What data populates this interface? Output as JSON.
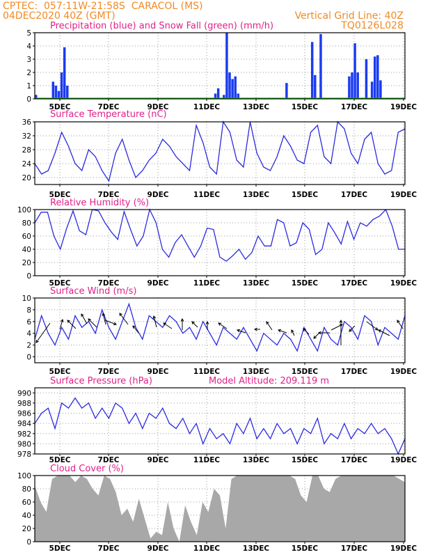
{
  "header": {
    "left_line1": "CPTEC:  057:11W-21:58S  CARACOL (MS)",
    "left_line2": "04DEC2020 40Z (GMT)",
    "right_line1": "Vertical Grid Line: 40Z",
    "right_line2": "TQ0126L028"
  },
  "colors": {
    "header": "#f08a24",
    "title": "#e0208a",
    "line": "#2a2ae0",
    "bar": "#1a3cf0",
    "snow": "#10b010",
    "cloud": "#a8a8a8"
  },
  "x_axis": {
    "ticks": [
      "5DEC",
      "7DEC",
      "9DEC",
      "11DEC",
      "13DEC",
      "15DEC",
      "17DEC",
      "19DEC"
    ]
  },
  "chart_data": [
    {
      "type": "bar",
      "title": "Precipitation (blue) and Snow Fall (green) (mm/h)",
      "ylim": [
        0,
        5
      ],
      "yticks": [
        0,
        1,
        2,
        3,
        4,
        5
      ],
      "series": [
        {
          "name": "Precipitation",
          "values": [
            0.3,
            0.0,
            0.0,
            0.0,
            0.0,
            0.0,
            1.3,
            1.0,
            0.6,
            2.0,
            3.9,
            1.0,
            0.0,
            0.0,
            0.0,
            0.0,
            0.0,
            0.0,
            0.0,
            0.0,
            0.0,
            0.0,
            0.0,
            0.0,
            0.0,
            0.0,
            0.0,
            0.0,
            0.0,
            0.0,
            0.0,
            0.0,
            0.0,
            0.0,
            0.0,
            0.0,
            0.0,
            0.0,
            0.0,
            0.0,
            0.0,
            0.0,
            0.0,
            0.0,
            0.0,
            0.0,
            0.0,
            0.0,
            0.0,
            0.0,
            0.0,
            0.0,
            0.0,
            0.0,
            0.0,
            0.0,
            0.0,
            0.0,
            0.0,
            0.0,
            0.0,
            0.0,
            0.0,
            0.4,
            0.8,
            0.0,
            0.3,
            5.0,
            2.0,
            1.5,
            1.7,
            0.4,
            0.0,
            0.0,
            0.0,
            0.0,
            0.0,
            0.0,
            0.0,
            0.0,
            0.0,
            0.0,
            0.0,
            0.0,
            0.0,
            0.0,
            0.0,
            0.0,
            1.2,
            0.0,
            0.0,
            0.0,
            0.0,
            0.0,
            0.0,
            0.0,
            0.0,
            4.3,
            1.8,
            0.0,
            4.9,
            0.0,
            0.0,
            0.0,
            0.0,
            0.0,
            0.0,
            0.0,
            0.0,
            0.0,
            1.7,
            2.0,
            4.2,
            2.0,
            0.0,
            0.0,
            3.0,
            0.0,
            1.3,
            3.2,
            3.3,
            1.4,
            0.0,
            0.0,
            0.0,
            0.0,
            0.0,
            0.0,
            0.0,
            0.0
          ]
        },
        {
          "name": "Snow Fall",
          "values": []
        }
      ]
    },
    {
      "type": "line",
      "title": "Surface Temperature (nC)",
      "ylim": [
        18,
        36
      ],
      "yticks": [
        20,
        24,
        28,
        32,
        36
      ],
      "y": [
        24,
        21,
        22,
        27,
        33,
        29,
        24,
        22,
        28,
        26,
        22,
        19,
        27,
        31,
        25,
        20,
        22,
        25,
        27,
        31,
        29,
        26,
        24,
        22,
        35,
        30,
        23,
        21,
        36,
        33,
        25,
        23,
        36,
        27,
        23,
        22,
        26,
        32,
        29,
        25,
        24,
        33,
        35,
        26,
        24,
        36,
        34,
        27,
        24,
        31,
        33,
        24,
        21,
        22,
        33,
        34
      ]
    },
    {
      "type": "line",
      "title": "Relative Humidity (%)",
      "ylim": [
        0,
        100
      ],
      "yticks": [
        0,
        20,
        40,
        60,
        80,
        100
      ],
      "y": [
        80,
        96,
        96,
        60,
        40,
        72,
        98,
        68,
        62,
        100,
        98,
        80,
        66,
        55,
        97,
        70,
        45,
        60,
        100,
        80,
        40,
        28,
        50,
        62,
        45,
        28,
        45,
        72,
        70,
        28,
        22,
        30,
        40,
        25,
        35,
        60,
        45,
        45,
        85,
        80,
        45,
        50,
        80,
        70,
        32,
        40,
        80,
        65,
        48,
        82,
        55,
        80,
        75,
        85,
        90,
        100,
        75,
        40,
        40
      ]
    },
    {
      "type": "line",
      "title": "Surface Wind (m/s)",
      "ylim": [
        -1,
        10
      ],
      "yticks": [
        0,
        2,
        4,
        6,
        8,
        10
      ],
      "y": [
        3,
        7,
        4,
        2,
        5,
        3,
        7,
        5,
        6,
        4,
        8,
        5,
        3,
        6,
        9,
        5,
        3,
        7,
        6,
        5,
        7,
        6,
        4,
        5,
        3,
        6,
        4,
        2,
        5,
        4,
        3,
        5,
        3,
        1,
        4,
        3,
        2,
        4,
        3,
        1,
        5,
        3,
        1,
        5,
        3,
        2,
        6,
        5,
        3,
        7,
        6,
        2,
        5,
        4,
        3,
        7
      ]
    },
    {
      "type": "line",
      "title": "Surface Pressure (hPa)",
      "annotation": "Model Altitude: 209.119  m",
      "ylim": [
        978,
        991
      ],
      "yticks": [
        978,
        980,
        982,
        984,
        986,
        988,
        990
      ],
      "y": [
        984,
        986,
        987,
        983,
        988,
        987,
        989,
        987,
        988,
        985,
        987,
        985,
        988,
        987,
        984,
        986,
        983,
        986,
        985,
        987,
        984,
        983,
        985,
        982,
        984,
        980,
        983,
        981,
        982,
        980,
        984,
        982,
        985,
        981,
        983,
        981,
        984,
        982,
        983,
        980,
        983,
        982,
        985,
        980,
        982,
        981,
        984,
        981,
        983,
        982,
        984,
        982,
        983,
        981,
        978,
        981
      ]
    },
    {
      "type": "area",
      "title": "Cloud Cover (%)",
      "ylim": [
        0,
        100
      ],
      "yticks": [
        0,
        20,
        40,
        60,
        80,
        100
      ],
      "y": [
        85,
        60,
        45,
        95,
        100,
        100,
        100,
        90,
        100,
        95,
        80,
        70,
        100,
        95,
        75,
        40,
        50,
        30,
        65,
        35,
        5,
        15,
        10,
        60,
        20,
        0,
        55,
        30,
        10,
        60,
        45,
        80,
        70,
        20,
        95,
        100,
        100,
        100,
        100,
        100,
        100,
        100,
        100,
        100,
        100,
        95,
        70,
        60,
        100,
        100,
        80,
        75,
        95,
        100,
        100,
        100,
        100,
        100,
        100,
        100,
        100,
        100,
        100,
        95,
        90
      ]
    }
  ]
}
